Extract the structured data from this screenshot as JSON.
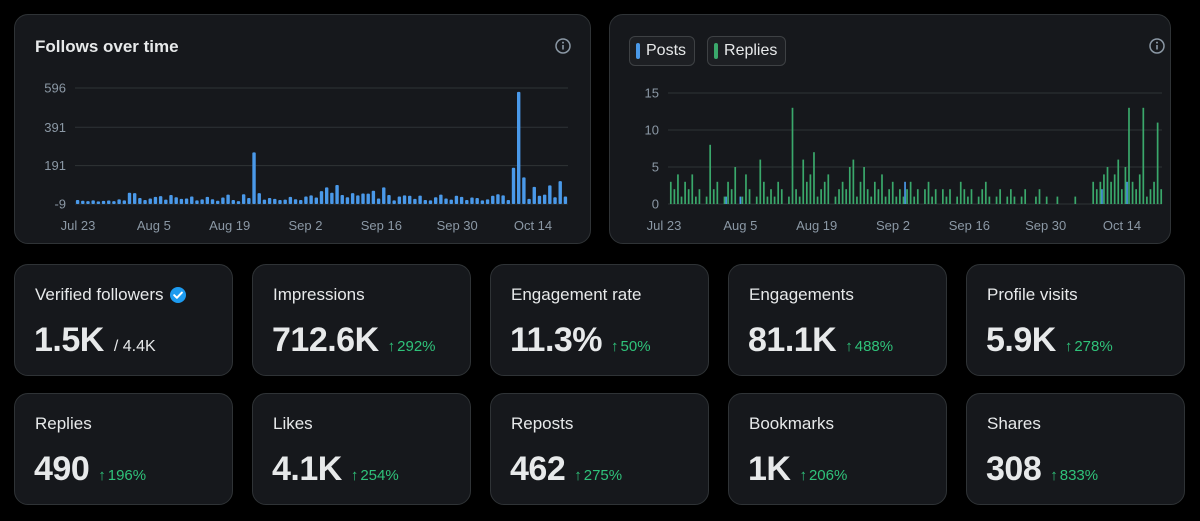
{
  "colors": {
    "background": "#000000",
    "card": "#16181c",
    "border": "#2f3336",
    "posts": "#4a99e9",
    "replies": "#3aa86b",
    "positive": "#2fc27a",
    "verified": "#1d9bf0"
  },
  "follows_chart": {
    "title": "Follows over time",
    "info_icon": "info-icon",
    "chart_data": {
      "type": "bar",
      "title": "Follows over time",
      "y_ticks": [
        "596",
        "391",
        "191",
        "-9"
      ],
      "ylim": [
        -9,
        596
      ],
      "x_ticks": [
        "Jul 23",
        "Aug 5",
        "Aug 19",
        "Sep 2",
        "Sep 16",
        "Sep 30",
        "Oct 14"
      ],
      "grid": true,
      "series": [
        {
          "name": "Follows",
          "values": [
            12,
            8,
            6,
            10,
            5,
            7,
            9,
            6,
            15,
            10,
            50,
            48,
            22,
            12,
            20,
            28,
            32,
            14,
            38,
            26,
            18,
            20,
            30,
            10,
            15,
            28,
            16,
            8,
            25,
            40,
            12,
            6,
            42,
            22,
            260,
            48,
            14,
            22,
            18,
            12,
            14,
            28,
            16,
            12,
            30,
            36,
            25,
            58,
            78,
            50,
            90,
            38,
            26,
            48,
            36,
            46,
            45,
            60,
            20,
            78,
            38,
            10,
            30,
            36,
            34,
            18,
            35,
            12,
            10,
            26,
            40,
            20,
            14,
            34,
            28,
            12,
            25,
            22,
            10,
            15,
            34,
            42,
            36,
            12,
            180,
            576,
            130,
            18,
            80,
            34,
            40,
            88,
            26,
            110,
            30
          ]
        }
      ]
    }
  },
  "activity_chart": {
    "legend": [
      {
        "label": "Posts",
        "color": "#4a99e9"
      },
      {
        "label": "Replies",
        "color": "#3aa86b"
      }
    ],
    "info_icon": "info-icon",
    "chart_data": {
      "type": "bar",
      "title": "",
      "y_ticks": [
        "15",
        "10",
        "5",
        "0"
      ],
      "ylim": [
        0,
        15
      ],
      "x_ticks": [
        "Jul 23",
        "Aug 5",
        "Aug 19",
        "Sep 2",
        "Sep 16",
        "Sep 30",
        "Oct 14"
      ],
      "grid": true,
      "series": [
        {
          "name": "Posts",
          "values": [
            0,
            0,
            0,
            0,
            0,
            0,
            0,
            0,
            0,
            0,
            0,
            0,
            0,
            0,
            0,
            0,
            1,
            0,
            0,
            0,
            1,
            0,
            0,
            0,
            0,
            0,
            0,
            0,
            0,
            0,
            0,
            0,
            0,
            0,
            0,
            0,
            0,
            0,
            0,
            0,
            0,
            0,
            0,
            0,
            0,
            0,
            0,
            0,
            0,
            0,
            0,
            0,
            0,
            0,
            0,
            0,
            0,
            0,
            0,
            0,
            0,
            0,
            0,
            0,
            0,
            0,
            3,
            0,
            0,
            0,
            0,
            0,
            0,
            0,
            0,
            0,
            0,
            0,
            0,
            0,
            0,
            0,
            0,
            0,
            0,
            0,
            0,
            0,
            0,
            0,
            0,
            0,
            0,
            0,
            0,
            0,
            0,
            0,
            0,
            0,
            0,
            0,
            0,
            0,
            0,
            0,
            0,
            0,
            0,
            0,
            0,
            0,
            0,
            0,
            0,
            0,
            0,
            0,
            0,
            0,
            0,
            2,
            0,
            0,
            0,
            0,
            0,
            0,
            3,
            0,
            0,
            0,
            0,
            0,
            0,
            0,
            0,
            0
          ]
        },
        {
          "name": "Replies",
          "values": [
            3,
            2,
            4,
            1,
            3,
            2,
            4,
            1,
            2,
            0,
            1,
            8,
            2,
            3,
            0,
            1,
            3,
            2,
            5,
            0,
            1,
            4,
            2,
            0,
            1,
            6,
            3,
            1,
            2,
            1,
            3,
            2,
            0,
            1,
            13,
            2,
            1,
            6,
            3,
            4,
            7,
            1,
            2,
            3,
            4,
            0,
            1,
            2,
            3,
            2,
            5,
            6,
            1,
            3,
            5,
            2,
            1,
            3,
            2,
            4,
            1,
            2,
            3,
            1,
            2,
            1,
            2,
            3,
            1,
            2,
            0,
            2,
            3,
            1,
            2,
            0,
            2,
            1,
            2,
            0,
            1,
            3,
            2,
            1,
            2,
            0,
            1,
            2,
            3,
            1,
            0,
            1,
            2,
            0,
            1,
            2,
            1,
            0,
            1,
            2,
            0,
            0,
            1,
            2,
            0,
            1,
            0,
            0,
            1,
            0,
            0,
            0,
            0,
            1,
            0,
            0,
            0,
            0,
            3,
            2,
            3,
            4,
            5,
            3,
            4,
            6,
            2,
            5,
            13,
            3,
            2,
            4,
            13,
            1,
            2,
            3,
            11,
            2
          ]
        }
      ]
    }
  },
  "stats": [
    {
      "label": "Verified followers",
      "value": "1.5K",
      "sub": "/ 4.4K",
      "change": "",
      "verified_icon": "verified-badge-icon"
    },
    {
      "label": "Impressions",
      "value": "712.6K",
      "sub": "",
      "change": "292%"
    },
    {
      "label": "Engagement rate",
      "value": "11.3%",
      "sub": "",
      "change": "50%"
    },
    {
      "label": "Engagements",
      "value": "81.1K",
      "sub": "",
      "change": "488%"
    },
    {
      "label": "Profile visits",
      "value": "5.9K",
      "sub": "",
      "change": "278%"
    },
    {
      "label": "Replies",
      "value": "490",
      "sub": "",
      "change": "196%"
    },
    {
      "label": "Likes",
      "value": "4.1K",
      "sub": "",
      "change": "254%"
    },
    {
      "label": "Reposts",
      "value": "462",
      "sub": "",
      "change": "275%"
    },
    {
      "label": "Bookmarks",
      "value": "1K",
      "sub": "",
      "change": "206%"
    },
    {
      "label": "Shares",
      "value": "308",
      "sub": "",
      "change": "833%"
    }
  ],
  "change_arrow": "↑"
}
